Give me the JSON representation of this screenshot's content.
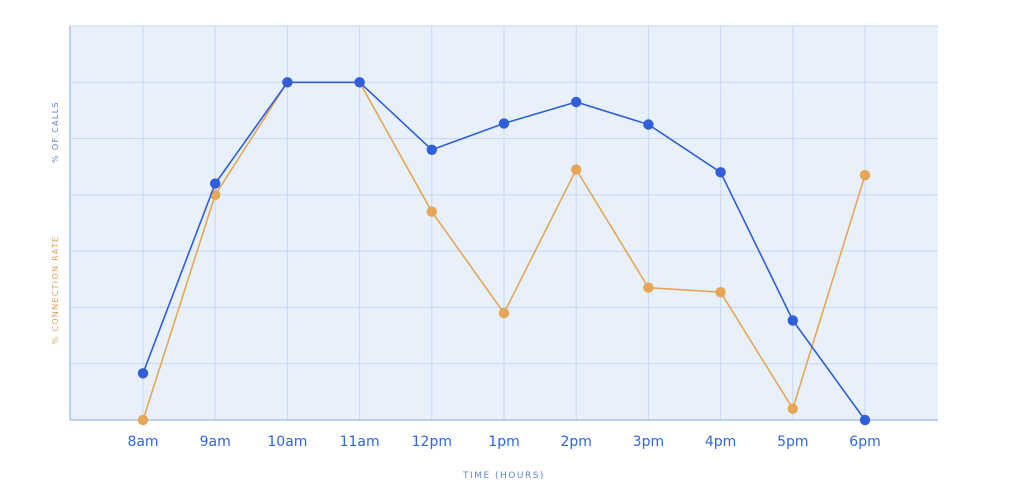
{
  "chart_data": {
    "type": "line",
    "categories": [
      "8am",
      "9am",
      "10am",
      "11am",
      "12pm",
      "1pm",
      "2pm",
      "3pm",
      "4pm",
      "5pm",
      "6pm"
    ],
    "xlabel": "TIME (HOURS)",
    "ylabel_primary": "% OF CALLS",
    "ylabel_secondary": "% CONNECTION RATE",
    "ylim": [
      0,
      7
    ],
    "grid": true,
    "series": [
      {
        "values": [
          0.83,
          4.2,
          6.0,
          6.0,
          4.8,
          5.27,
          5.65,
          5.25,
          4.4,
          1.77,
          0.0
        ],
        "color": "#2f5fd8"
      },
      {
        "values": [
          0.0,
          4.0,
          6.0,
          6.0,
          3.7,
          1.9,
          4.45,
          2.35,
          2.27,
          0.2,
          4.35
        ],
        "color": "#e8a654"
      }
    ],
    "colors": {
      "plot_background": "#e8f0fc",
      "grid": "#c6d7f4",
      "axis": "#a9c2ec"
    }
  }
}
